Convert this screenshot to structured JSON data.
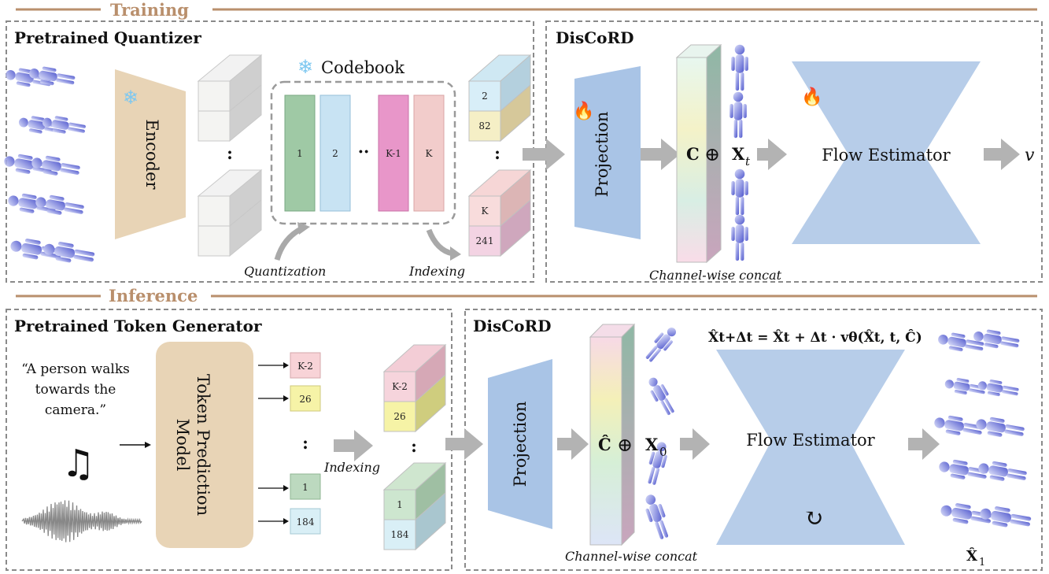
{
  "sections": {
    "training": "Training",
    "inference": "Inference"
  },
  "training": {
    "quantizer_title": "Pretrained Quantizer",
    "encoder_label": "Encoder",
    "codebook_label": "Codebook",
    "codebook_entries": [
      "1",
      "2",
      "K-1",
      "K"
    ],
    "codebook_ellipsis": "··",
    "quantization_label": "Quantization",
    "indexing_label": "Indexing",
    "token_stack_top": [
      "2",
      "82"
    ],
    "token_stack_bottom": [
      "K",
      "241"
    ],
    "colon": ":",
    "discord_title": "DisCoRD",
    "projection_label": "Projection",
    "concat_formula": {
      "c": "C",
      "oplus": "⊕",
      "x": "X",
      "sub": "t"
    },
    "channel_concat_label": "Channel-wise concat",
    "flow_estimator_label": "Flow Estimator",
    "output_symbol": "v"
  },
  "inference": {
    "generator_title": "Pretrained Token Generator",
    "quote_lines": [
      "“A person walks",
      "towards the",
      "camera.”"
    ],
    "music_symbol": "♫",
    "model_label_lines": [
      "Token Prediction",
      "Model"
    ],
    "tokens": [
      "K-2",
      "26",
      "1",
      "184"
    ],
    "colon": ":",
    "indexing_label": "Indexing",
    "discord_title": "DisCoRD",
    "projection_label": "Projection",
    "concat_formula": {
      "c": "Ĉ",
      "oplus": "⊕",
      "x": "X",
      "sub": "0"
    },
    "channel_concat_label": "Channel-wise concat",
    "update_equation": "X̂t+Δt = X̂t + Δt · vθ(X̂t, t, Ĉ)",
    "flow_estimator_label": "Flow Estimator",
    "loop_symbol": "↻",
    "output_label": {
      "x": "X̂",
      "sub": "1"
    }
  },
  "colors": {
    "section_title": "#b98f6c",
    "dashed_border": "#888888",
    "encoder_fill": "#e8d4b6",
    "projection_fill": "#a9c4e6",
    "flow_fill": "#b7cde9",
    "model_fill": "#e8d4b6",
    "arrow_fill": "#b3b3b3",
    "human_color": "#5b63d6"
  }
}
